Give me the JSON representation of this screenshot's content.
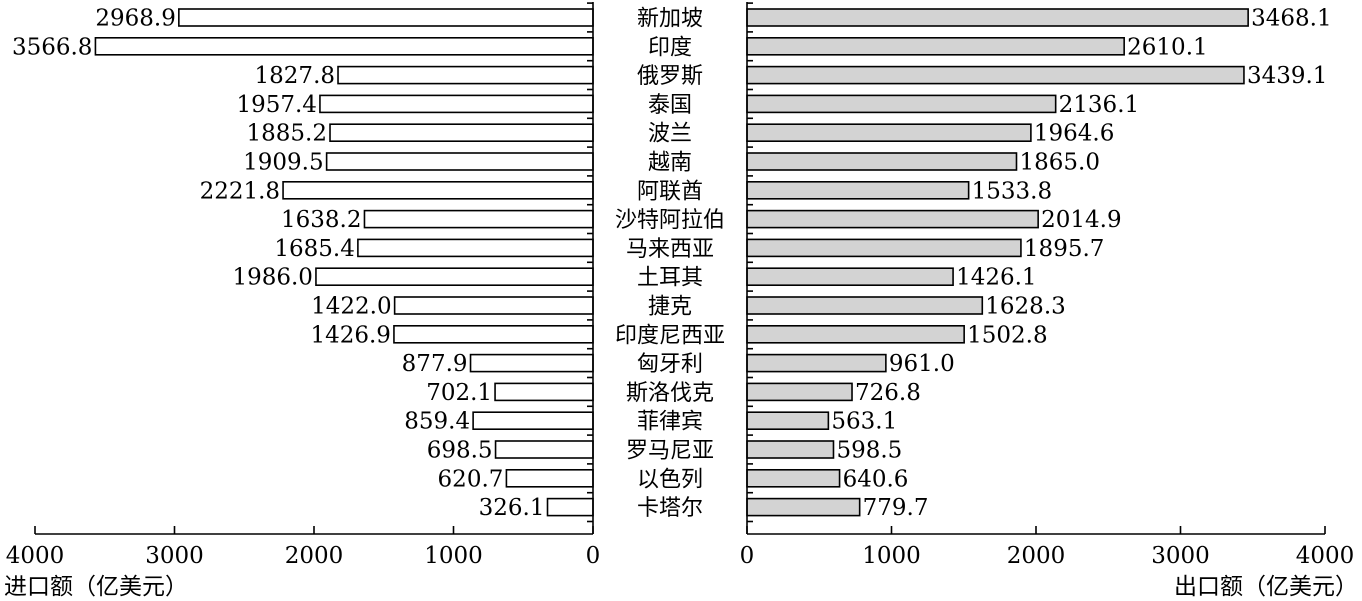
{
  "chart_data": {
    "type": "bar",
    "orientation": "horizontal-butterfly",
    "categories": [
      "新加坡",
      "印度",
      "俄罗斯",
      "泰国",
      "波兰",
      "越南",
      "阿联酋",
      "沙特阿拉伯",
      "马来西亚",
      "土耳其",
      "捷克",
      "印度尼西亚",
      "匈牙利",
      "斯洛伐克",
      "菲律宾",
      "罗马尼亚",
      "以色列",
      "卡塔尔"
    ],
    "series": [
      {
        "values": [
          2968.9,
          3566.8,
          1827.8,
          1957.4,
          1885.2,
          1909.5,
          2221.8,
          1638.2,
          1685.4,
          1986.0,
          1422.0,
          1426.9,
          877.9,
          702.1,
          859.4,
          698.5,
          620.7,
          326.1
        ],
        "labels": [
          "2968.9",
          "3566.8",
          "1827.8",
          "1957.4",
          "1885.2",
          "1909.5",
          "2221.8",
          "1638.2",
          "1685.4",
          "1986.0",
          "1422.0",
          "1426.9",
          "877.9",
          "702.1",
          "859.4",
          "698.5",
          "620.7",
          "326.1"
        ],
        "fill": "#ffffff"
      },
      {
        "values": [
          3468.1,
          2610.1,
          3439.1,
          2136.1,
          1964.6,
          1865.0,
          1533.8,
          2014.9,
          1895.7,
          1426.1,
          1628.3,
          1502.8,
          961.0,
          726.8,
          563.1,
          598.5,
          640.6,
          779.7
        ],
        "labels": [
          "3468.1",
          "2610.1",
          "3439.1",
          "2136.1",
          "1964.6",
          "1865.0",
          "1533.8",
          "2014.9",
          "1895.7",
          "1426.1",
          "1628.3",
          "1502.8",
          "961.0",
          "726.8",
          "563.1",
          "598.5",
          "640.6",
          "779.7"
        ],
        "fill": "#d3d3d3"
      }
    ],
    "left_axis": {
      "xlabel": "进口额（亿美元）",
      "xlim": [
        0,
        4000
      ],
      "ticks": [
        "4000",
        "3000",
        "2000",
        "1000",
        "0"
      ]
    },
    "right_axis": {
      "xlabel": "出口额（亿美元）",
      "xlim": [
        0,
        4000
      ],
      "ticks": [
        "0",
        "1000",
        "2000",
        "3000",
        "4000"
      ]
    },
    "grid": false,
    "legend": "none"
  }
}
